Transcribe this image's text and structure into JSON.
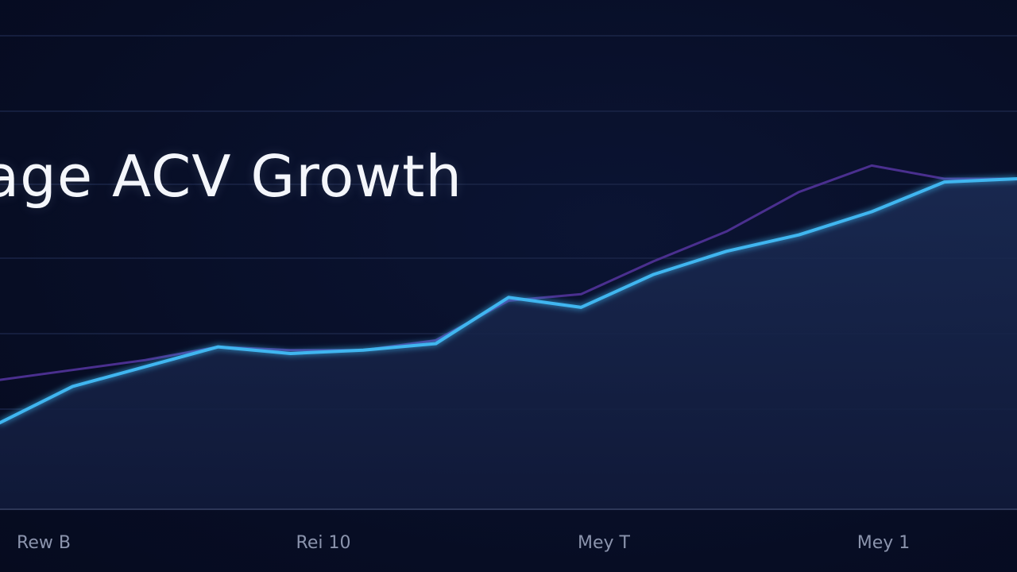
{
  "chart_data": {
    "type": "area",
    "title": "age ACV Growth",
    "xlabel": "",
    "ylabel": "",
    "x_ticks": [
      "Rew B",
      "Rei 10",
      "Mey T",
      "Mey 1"
    ],
    "x": [
      0,
      1,
      2,
      3,
      4,
      5,
      6,
      7,
      8,
      9,
      10,
      11,
      12,
      13,
      14
    ],
    "xlim": [
      0,
      14
    ],
    "ylim": [
      0,
      10
    ],
    "grid": true,
    "legend": "none",
    "series": [
      {
        "values": [
          2.6,
          3.7,
          4.3,
          4.9,
          4.7,
          4.8,
          5.0,
          6.4,
          6.1,
          7.1,
          7.8,
          8.3,
          9.0,
          9.9,
          10.0
        ],
        "color": "#3fb6f0",
        "fill": true
      },
      {
        "values": [
          3.9,
          4.2,
          4.5,
          4.9,
          4.8,
          4.8,
          5.1,
          6.3,
          6.5,
          7.5,
          8.4,
          9.6,
          10.4,
          10.0,
          10.0
        ],
        "color": "#4a2f8f",
        "fill": false
      }
    ]
  }
}
